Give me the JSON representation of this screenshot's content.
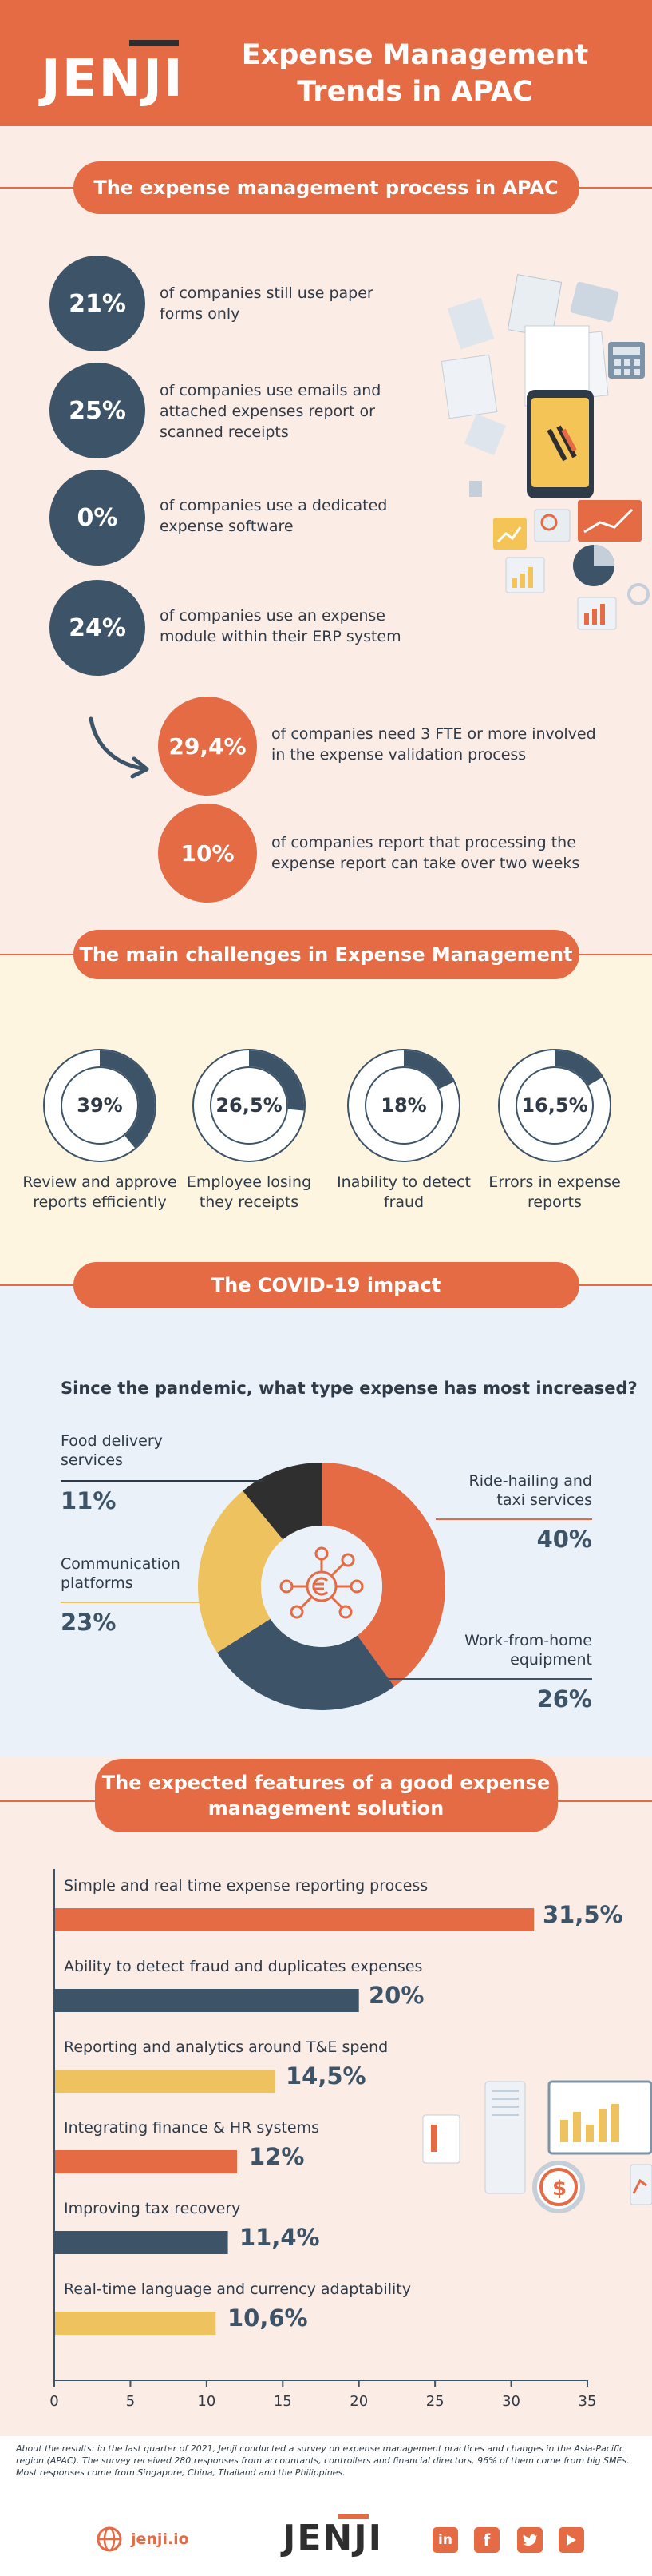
{
  "header": {
    "brand": "JENJI",
    "title_line1": "Expense Management",
    "title_line2": "Trends in APAC"
  },
  "process": {
    "title": "The expense management process in APAC",
    "stats": [
      {
        "value": "21%",
        "line1": "of companies still use paper",
        "line2": "forms only",
        "line3": ""
      },
      {
        "value": "25%",
        "line1": "of companies use emails and",
        "line2": "attached expenses report or",
        "line3": "scanned receipts"
      },
      {
        "value": "0%",
        "line1": "of companies use a dedicated",
        "line2": "expense software",
        "line3": ""
      },
      {
        "value": "24%",
        "line1": "of companies use an expense",
        "line2": "module within their ERP system",
        "line3": ""
      }
    ],
    "extra": [
      {
        "value": "29,4%",
        "line1": "of companies need 3 FTE or more involved",
        "line2": "in the expense validation process"
      },
      {
        "value": "10%",
        "line1": "of companies report that processing the",
        "line2": "expense report can take over two weeks"
      }
    ]
  },
  "challenges": {
    "title": "The main challenges in Expense Management",
    "items": [
      {
        "value": "39%",
        "fraction": 0.39,
        "line1": "Review and approve",
        "line2": "reports efficiently"
      },
      {
        "value": "26,5%",
        "fraction": 0.265,
        "line1": "Employee losing",
        "line2": "they receipts"
      },
      {
        "value": "18%",
        "fraction": 0.18,
        "line1": "Inability to detect",
        "line2": "fraud"
      },
      {
        "value": "16,5%",
        "fraction": 0.165,
        "line1": "Errors in expense",
        "line2": "reports"
      }
    ]
  },
  "covid": {
    "title": "The COVID-19 impact",
    "question": "Since the pandemic, what type expense has most increased?",
    "labels": [
      {
        "line1": "Food delivery",
        "line2": "services",
        "pct": "11%"
      },
      {
        "line1": "Communication",
        "line2": "platforms",
        "pct": "23%"
      },
      {
        "line1": "Ride-hailing and",
        "line2": "taxi services",
        "pct": "40%"
      },
      {
        "line1": "Work-from-home",
        "line2": "equipment",
        "pct": "26%"
      }
    ]
  },
  "features": {
    "title_line1": "The expected features of a good expense",
    "title_line2": "management solution",
    "items": [
      {
        "label": "Simple and real time expense reporting process",
        "display": "31,5%"
      },
      {
        "label": "Ability to detect fraud and duplicates expenses",
        "display": "20%"
      },
      {
        "label": "Reporting and analytics around T&E spend",
        "display": "14,5%"
      },
      {
        "label": "Integrating finance & HR systems",
        "display": "12%"
      },
      {
        "label": "Improving tax recovery",
        "display": "11,4%"
      },
      {
        "label": "Real-time language and currency adaptability",
        "display": "10,6%"
      }
    ]
  },
  "footer": {
    "note": "About the results: in the last quarter of 2021, Jenji conducted a survey on expense management practices and changes in the Asia-Pacific region (APAC). The survey received 280 responses from accountants, controllers and financial directors, 96% of them come from big SMEs. Most responses come from Singapore, China, Thailand and the Philippines.",
    "site": "jenji.io",
    "brand": "JENJI"
  },
  "colors": {
    "orange": "#e56b45",
    "navy": "#3c5368",
    "yellow": "#eec35f",
    "dark": "#2f2f2f"
  },
  "chart_data": [
    {
      "type": "pie",
      "title": "Since the pandemic, what type expense has most increased?",
      "categories": [
        "Ride-hailing and taxi services",
        "Work-from-home equipment",
        "Communication platforms",
        "Food delivery services"
      ],
      "values": [
        40,
        26,
        23,
        11
      ],
      "colors": [
        "#e56b45",
        "#3c5368",
        "#eec35f",
        "#2f2f2f"
      ]
    },
    {
      "type": "bar",
      "orientation": "horizontal",
      "categories": [
        "Simple and real time expense reporting process",
        "Ability to detect fraud and duplicates expenses",
        "Reporting and analytics around T&E spend",
        "Integrating finance & HR systems",
        "Improving tax recovery",
        "Real-time language and currency adaptability"
      ],
      "values": [
        31.5,
        20,
        14.5,
        12,
        11.4,
        10.6
      ],
      "colors": [
        "#e56b45",
        "#3c5368",
        "#eec35f",
        "#e56b45",
        "#3c5368",
        "#eec35f"
      ],
      "xlim": [
        0,
        35
      ],
      "xticks": [
        "0",
        "5",
        "10",
        "15",
        "20",
        "25",
        "30",
        "35"
      ]
    }
  ]
}
